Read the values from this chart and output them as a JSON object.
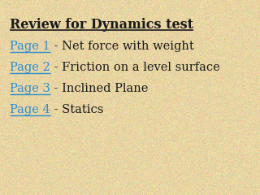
{
  "background_color": "#e8d5a3",
  "title": "Review for Dynamics test",
  "title_color": "#1a1a1a",
  "title_fontsize": 11.5,
  "link_color": "#2b8fd4",
  "text_color": "#1a1a1a",
  "body_fontsize": 10.5,
  "items": [
    {
      "link": "Page 1",
      "desc": " - Net force with weight"
    },
    {
      "link": "Page 2",
      "desc": " - Friction on a level surface"
    },
    {
      "link": "Page 3",
      "desc": " - Inclined Plane"
    },
    {
      "link": "Page 4",
      "desc": " - Statics"
    }
  ]
}
